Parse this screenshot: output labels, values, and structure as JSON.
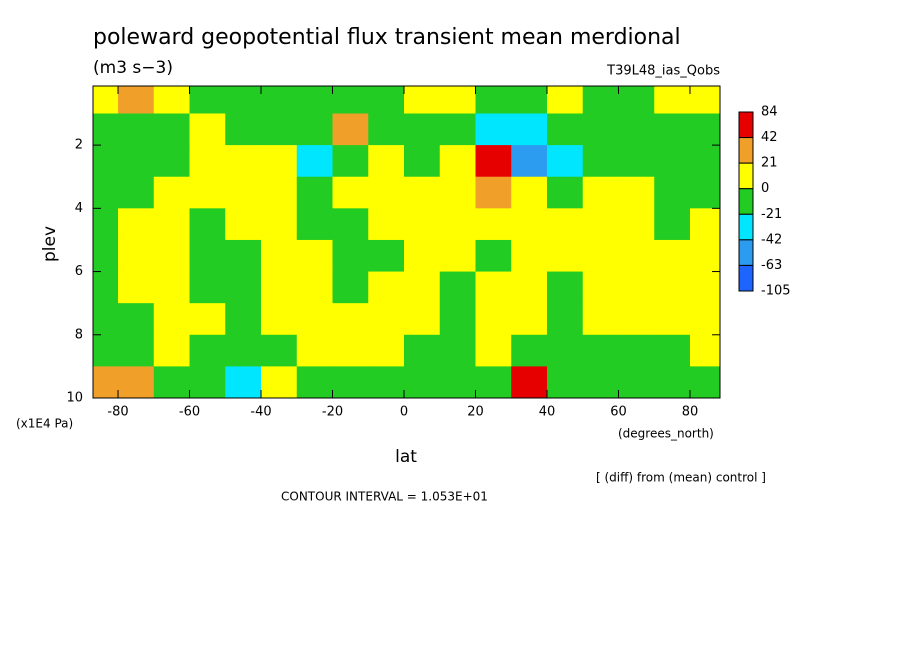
{
  "chart_data": {
    "type": "contour",
    "title": "poleward geopotential flux transient mean merdional",
    "units": "(m3 s−3)",
    "dataset": "T39L48_ias_Qobs",
    "x_label": "lat",
    "x_units": "(degrees_north)",
    "y_label": "plev",
    "y_units": "(x1E4 Pa)",
    "note": "[ (diff) from (mean) control ]",
    "contour_interval": "CONTOUR INTERVAL = 1.053E+01",
    "xlim": [
      -87,
      88.4
    ],
    "xticks": [
      -80,
      -60,
      -40,
      -20,
      0,
      20,
      40,
      60,
      80
    ],
    "ylim": [
      10,
      0.13
    ],
    "yticks": [
      2,
      4,
      6,
      8,
      10
    ],
    "x": [
      -85,
      -75,
      -65,
      -55,
      -45,
      -35,
      -25,
      -15,
      -5,
      5,
      15,
      25,
      35,
      45,
      55,
      65,
      75,
      85
    ],
    "y": [
      0.5,
      1.5,
      2.5,
      3.5,
      4.5,
      5.5,
      6.5,
      7.5,
      8.5,
      9.5
    ],
    "z": [
      [
        10,
        30,
        5,
        -5,
        -5,
        -5,
        -5,
        -5,
        -5,
        5,
        5,
        -5,
        -5,
        5,
        -5,
        -5,
        10,
        20
      ],
      [
        -5,
        -5,
        -5,
        5,
        -5,
        -5,
        -5,
        25,
        -5,
        -5,
        -15,
        -25,
        -30,
        -15,
        -5,
        -5,
        -5,
        -5
      ],
      [
        -10,
        -5,
        -5,
        5,
        5,
        10,
        -25,
        -5,
        5,
        -5,
        15,
        50,
        -45,
        -25,
        -5,
        -5,
        -5,
        -5
      ],
      [
        -5,
        -5,
        5,
        5,
        5,
        5,
        -5,
        5,
        5,
        5,
        5,
        25,
        5,
        -5,
        5,
        5,
        -5,
        -5
      ],
      [
        -5,
        5,
        5,
        -5,
        5,
        5,
        -5,
        -5,
        5,
        5,
        5,
        5,
        5,
        5,
        5,
        5,
        -5,
        5
      ],
      [
        -5,
        5,
        5,
        -5,
        -5,
        5,
        5,
        -5,
        -5,
        5,
        5,
        -5,
        5,
        5,
        5,
        5,
        5,
        5
      ],
      [
        -5,
        5,
        5,
        -5,
        -5,
        5,
        5,
        -5,
        5,
        5,
        -5,
        5,
        5,
        -5,
        5,
        5,
        5,
        5
      ],
      [
        -5,
        -5,
        5,
        5,
        -5,
        5,
        5,
        5,
        5,
        5,
        -5,
        5,
        5,
        -5,
        5,
        5,
        5,
        5
      ],
      [
        -5,
        -5,
        5,
        -5,
        -5,
        -5,
        5,
        5,
        5,
        -5,
        -5,
        5,
        -5,
        -5,
        -5,
        -5,
        -5,
        5
      ],
      [
        40,
        25,
        -5,
        -10,
        -30,
        10,
        -5,
        -5,
        -5,
        -5,
        -5,
        -20,
        60,
        -20,
        -5,
        -5,
        -5,
        -5
      ]
    ],
    "levels": [
      -105,
      -63,
      -42,
      -21,
      0,
      21,
      42,
      84
    ],
    "colors": [
      "#1e64ff",
      "#2c9cf0",
      "#00e6ff",
      "#22cc22",
      "#ffff00",
      "#f0a028",
      "#e60000"
    ]
  }
}
